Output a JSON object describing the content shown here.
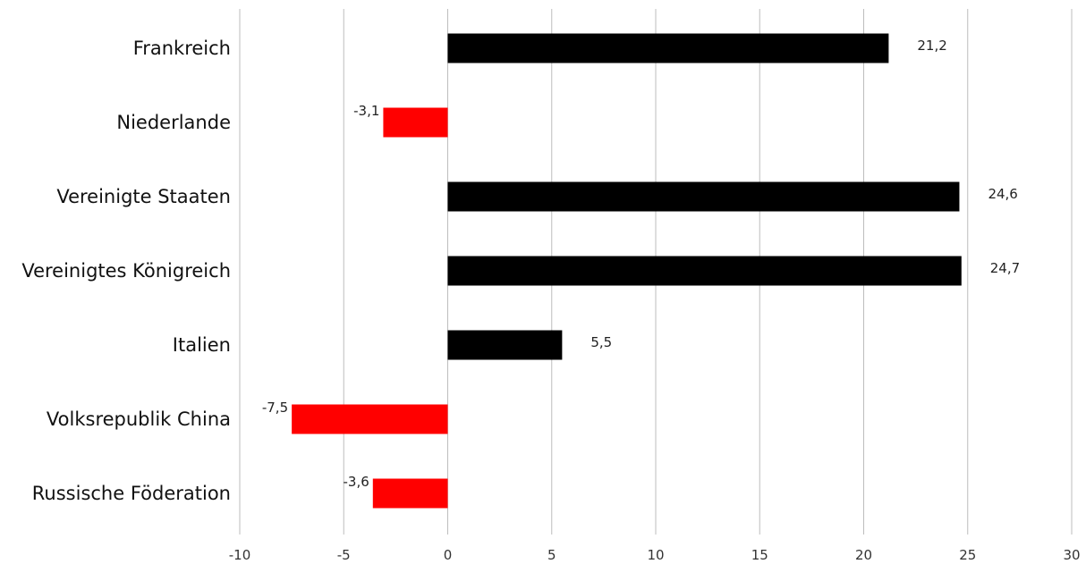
{
  "chart_data": {
    "type": "bar",
    "orientation": "horizontal",
    "title": "",
    "xlabel": "",
    "ylabel": "",
    "categories": [
      "Frankreich",
      "Niederlande",
      "Vereinigte Staaten",
      "Vereinigtes Königreich",
      "Italien",
      "Volksrepublik China",
      "Russische Föderation"
    ],
    "values": [
      21.2,
      -3.1,
      24.6,
      24.7,
      5.5,
      -7.5,
      -3.6
    ],
    "value_labels": [
      "21,2",
      "-3,1",
      "24,6",
      "24,7",
      "5,5",
      "-7,5",
      "-3,6"
    ],
    "xlim": [
      -10,
      30
    ],
    "xticks": [
      -10,
      -5,
      0,
      5,
      10,
      15,
      20,
      25,
      30
    ],
    "xtick_labels": [
      "-10",
      "-5",
      "0",
      "5",
      "10",
      "15",
      "20",
      "25",
      "30"
    ],
    "grid": "vertical",
    "legend": "none",
    "colors": {
      "positive": "#000000",
      "negative": "#ff0000"
    }
  }
}
